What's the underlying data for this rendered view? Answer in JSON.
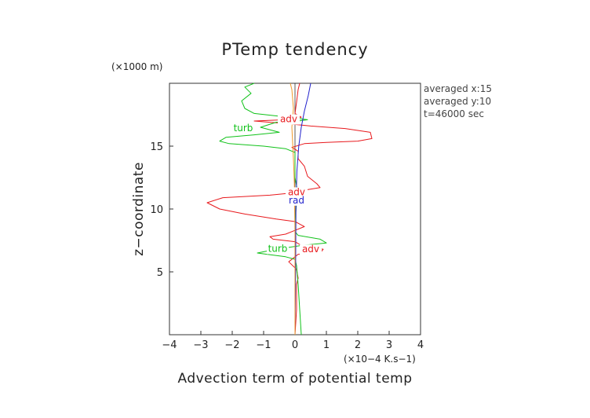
{
  "chart_data": {
    "type": "line",
    "title": "PTemp tendency",
    "xlabel": "Advection term of potential temp",
    "ylabel": "z−coordinate",
    "x_unit": "(×10−4 K.s−1)",
    "y_unit": "(×1000 m)",
    "xlim": [
      -4,
      4
    ],
    "ylim": [
      0,
      20
    ],
    "x_ticks": [
      "−4",
      "−3",
      "−2",
      "−1",
      "0",
      "1",
      "2",
      "3",
      "4"
    ],
    "y_ticks": [
      "5",
      "10",
      "15"
    ],
    "annotations": [
      "averaged  x:15",
      "averaged  y:10",
      "t=46000 sec"
    ],
    "series": [
      {
        "name": "adv",
        "color": "#e8191d",
        "points": [
          [
            0.0,
            0
          ],
          [
            0.05,
            2
          ],
          [
            0.05,
            4
          ],
          [
            0.1,
            4.5
          ],
          [
            0.05,
            5.2
          ],
          [
            -0.2,
            5.8
          ],
          [
            0.0,
            6.2
          ],
          [
            0.1,
            6.4
          ],
          [
            0.8,
            6.5
          ],
          [
            0.9,
            6.8
          ],
          [
            0.2,
            7.1
          ],
          [
            0.0,
            7.4
          ],
          [
            -0.7,
            7.6
          ],
          [
            -0.8,
            7.8
          ],
          [
            -0.3,
            8.0
          ],
          [
            0.0,
            8.3
          ],
          [
            0.3,
            8.6
          ],
          [
            0.0,
            9.0
          ],
          [
            -0.6,
            9.2
          ],
          [
            -1.6,
            9.6
          ],
          [
            -2.4,
            10.0
          ],
          [
            -2.8,
            10.5
          ],
          [
            -2.3,
            10.9
          ],
          [
            -0.8,
            11.1
          ],
          [
            0.0,
            11.3
          ],
          [
            0.3,
            11.5
          ],
          [
            0.8,
            11.7
          ],
          [
            0.7,
            12.0
          ],
          [
            0.4,
            12.6
          ],
          [
            0.3,
            13.4
          ],
          [
            0.1,
            14.0
          ],
          [
            0.1,
            14.6
          ],
          [
            -0.1,
            14.9
          ],
          [
            0.3,
            15.2
          ],
          [
            1.0,
            15.3
          ],
          [
            2.0,
            15.4
          ],
          [
            2.45,
            15.6
          ],
          [
            2.4,
            16.1
          ],
          [
            1.6,
            16.4
          ],
          [
            0.5,
            16.6
          ],
          [
            -0.3,
            16.8
          ],
          [
            -1.3,
            17.0
          ],
          [
            -0.3,
            17.1
          ],
          [
            0.2,
            17.3
          ],
          [
            0.0,
            17.6
          ],
          [
            0.05,
            18.5
          ],
          [
            0.1,
            19.5
          ],
          [
            0.15,
            20
          ]
        ]
      },
      {
        "name": "turb",
        "color": "#11c21a",
        "points": [
          [
            0.2,
            0
          ],
          [
            0.15,
            2
          ],
          [
            0.1,
            4
          ],
          [
            0.05,
            5.5
          ],
          [
            0.0,
            6.0
          ],
          [
            -0.3,
            6.2
          ],
          [
            -0.9,
            6.4
          ],
          [
            -1.2,
            6.5
          ],
          [
            -0.6,
            6.8
          ],
          [
            0.2,
            7.1
          ],
          [
            1.0,
            7.3
          ],
          [
            0.8,
            7.6
          ],
          [
            0.1,
            7.9
          ],
          [
            0.0,
            8.2
          ],
          [
            0.0,
            9.0
          ],
          [
            0.05,
            10.5
          ],
          [
            0.1,
            11.2
          ],
          [
            0.0,
            12.5
          ],
          [
            0.0,
            14.5
          ],
          [
            -0.3,
            14.8
          ],
          [
            -1.0,
            15.0
          ],
          [
            -2.1,
            15.2
          ],
          [
            -2.4,
            15.4
          ],
          [
            -2.2,
            15.7
          ],
          [
            -1.3,
            15.9
          ],
          [
            -0.5,
            16.1
          ],
          [
            -1.1,
            16.5
          ],
          [
            -0.6,
            16.9
          ],
          [
            0.1,
            17.0
          ],
          [
            0.4,
            17.1
          ],
          [
            -0.2,
            17.3
          ],
          [
            -1.3,
            17.6
          ],
          [
            -1.6,
            18.0
          ],
          [
            -1.7,
            18.6
          ],
          [
            -1.4,
            19.2
          ],
          [
            -1.6,
            19.7
          ],
          [
            -1.3,
            20
          ]
        ]
      },
      {
        "name": "rad",
        "color": "#2222cc",
        "points": [
          [
            0.0,
            0
          ],
          [
            0.02,
            5
          ],
          [
            0.03,
            10
          ],
          [
            0.06,
            13
          ],
          [
            0.12,
            15
          ],
          [
            0.2,
            16.5
          ],
          [
            0.3,
            17.8
          ],
          [
            0.42,
            19
          ],
          [
            0.5,
            20
          ]
        ]
      },
      {
        "name": "",
        "color": "#f09a2a",
        "points": [
          [
            0.0,
            0
          ],
          [
            0.0,
            8
          ],
          [
            -0.02,
            12
          ],
          [
            -0.05,
            14
          ],
          [
            -0.1,
            16.5
          ],
          [
            -0.05,
            18
          ],
          [
            -0.1,
            19.5
          ],
          [
            -0.15,
            20
          ]
        ]
      }
    ],
    "curve_labels": [
      {
        "text": "adv",
        "at": [
          -0.2,
          16.9
        ],
        "color": "#e8191d"
      },
      {
        "text": "turb",
        "at": [
          -1.65,
          16.2
        ],
        "color": "#11c21a"
      },
      {
        "text": "adv",
        "at": [
          0.05,
          11.1
        ],
        "color": "#e8191d"
      },
      {
        "text": "rad",
        "at": [
          0.05,
          10.45
        ],
        "color": "#2222cc"
      },
      {
        "text": "turb",
        "at": [
          -0.55,
          6.6
        ],
        "color": "#11c21a"
      },
      {
        "text": "adv",
        "at": [
          0.5,
          6.55
        ],
        "color": "#e8191d"
      }
    ],
    "grid": false,
    "legend": "none"
  }
}
